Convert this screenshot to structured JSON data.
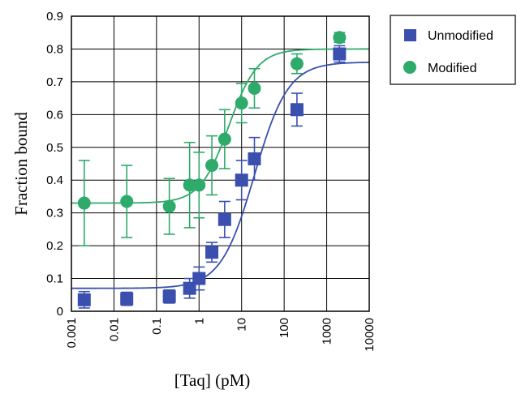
{
  "chart_data": {
    "type": "scatter",
    "xscale": "log",
    "xlim": [
      0.001,
      10000
    ],
    "ylim": [
      0,
      0.9
    ],
    "xlabel": "[Taq] (pM)",
    "ylabel": "Fraction bound",
    "grid": true,
    "legend": "right",
    "x_ticks": [
      "0.001",
      "0.01",
      "0.1",
      "1",
      "10",
      "100",
      "1000",
      "10000"
    ],
    "y_ticks": [
      "0",
      "0.1",
      "0.2",
      "0.3",
      "0.4",
      "0.5",
      "0.6",
      "0.7",
      "0.8",
      "0.9"
    ],
    "series": [
      {
        "name": "Unmodified",
        "marker": "square",
        "color": "#3a4fae",
        "points": [
          {
            "x": 0.002,
            "y": 0.035,
            "err": 0.025
          },
          {
            "x": 0.02,
            "y": 0.038,
            "err": 0.02
          },
          {
            "x": 0.2,
            "y": 0.045,
            "err": 0.02
          },
          {
            "x": 0.6,
            "y": 0.07,
            "err": 0.03
          },
          {
            "x": 1,
            "y": 0.1,
            "err": 0.035
          },
          {
            "x": 2,
            "y": 0.18,
            "err": 0.03
          },
          {
            "x": 4,
            "y": 0.28,
            "err": 0.055
          },
          {
            "x": 10,
            "y": 0.4,
            "err": 0.06
          },
          {
            "x": 20,
            "y": 0.465,
            "err": 0.065
          },
          {
            "x": 200,
            "y": 0.615,
            "err": 0.05
          },
          {
            "x": 2000,
            "y": 0.785,
            "err": 0.025
          }
        ],
        "fit": {
          "bottom": 0.07,
          "top": 0.76,
          "ec50": 20,
          "hill": 1.1
        }
      },
      {
        "name": "Modified",
        "marker": "circle",
        "color": "#2eaa6a",
        "points": [
          {
            "x": 0.002,
            "y": 0.33,
            "err": 0.13
          },
          {
            "x": 0.02,
            "y": 0.335,
            "err": 0.11
          },
          {
            "x": 0.2,
            "y": 0.32,
            "err": 0.085
          },
          {
            "x": 0.6,
            "y": 0.385,
            "err": 0.13
          },
          {
            "x": 1,
            "y": 0.385,
            "err": 0.1
          },
          {
            "x": 2,
            "y": 0.445,
            "err": 0.09
          },
          {
            "x": 4,
            "y": 0.525,
            "err": 0.09
          },
          {
            "x": 10,
            "y": 0.635,
            "err": 0.06
          },
          {
            "x": 20,
            "y": 0.68,
            "err": 0.06
          },
          {
            "x": 200,
            "y": 0.755,
            "err": 0.03
          },
          {
            "x": 2000,
            "y": 0.835,
            "err": 0.015
          }
        ],
        "fit": {
          "bottom": 0.33,
          "top": 0.8,
          "ec50": 5,
          "hill": 1.3
        }
      }
    ]
  }
}
